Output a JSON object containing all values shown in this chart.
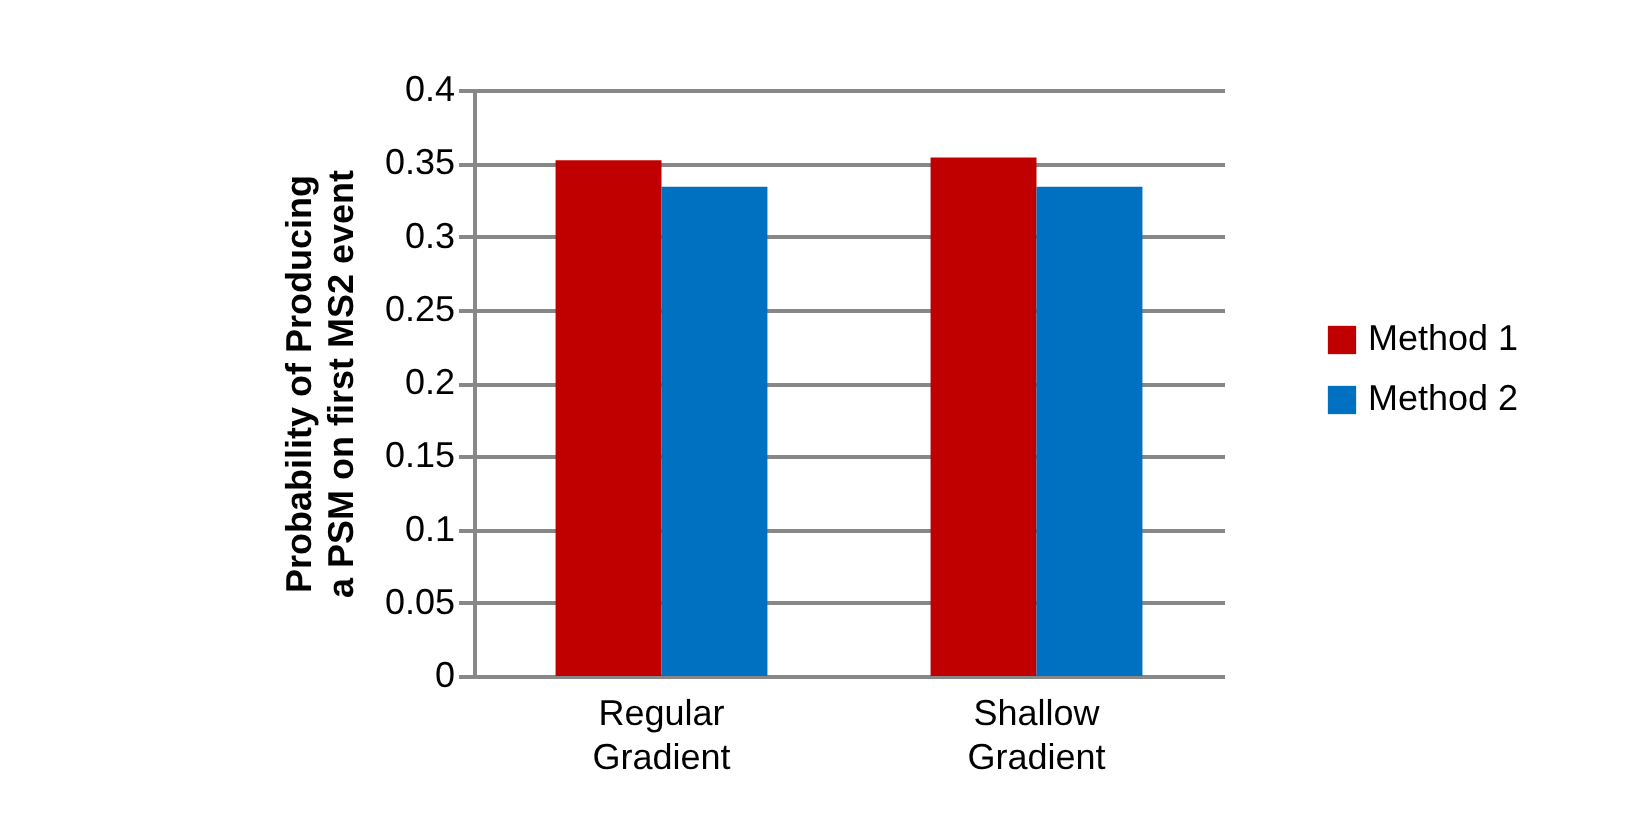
{
  "chart_data": {
    "type": "bar",
    "ylabel": "Probability of Producing a PSM on first MS2 event",
    "categories": [
      "Regular Gradient",
      "Shallow Gradient"
    ],
    "series": [
      {
        "name": "Method 1",
        "color": "#c00000",
        "values": [
          0.352,
          0.354
        ]
      },
      {
        "name": "Method 2",
        "color": "#0070c0",
        "values": [
          0.334,
          0.334
        ]
      }
    ],
    "ylim": [
      0,
      0.4
    ],
    "yticks": [
      0,
      0.05,
      0.1,
      0.15,
      0.2,
      0.25,
      0.3,
      0.35,
      0.4
    ],
    "grid": "y",
    "legend": "right"
  }
}
